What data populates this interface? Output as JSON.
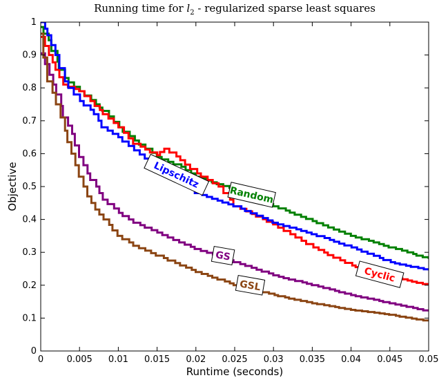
{
  "chart_data": {
    "type": "line",
    "title_prefix": "Running time for ",
    "title_var": "l",
    "title_sub": "2",
    "title_suffix": " - regularized sparse least squares",
    "xlabel": "Runtime (seconds)",
    "ylabel": "Objective",
    "xlim": [
      0,
      0.05
    ],
    "ylim": [
      0,
      1
    ],
    "xticks": [
      0,
      0.005,
      0.01,
      0.015,
      0.02,
      0.025,
      0.03,
      0.035,
      0.04,
      0.045,
      0.05
    ],
    "xtick_labels": [
      "0",
      "0.005",
      "0.01",
      "0.015",
      "0.02",
      "0.025",
      "0.03",
      "0.035",
      "0.04",
      "0.045",
      "0.05"
    ],
    "yticks": [
      0,
      0.1,
      0.2,
      0.3,
      0.4,
      0.5,
      0.6,
      0.7,
      0.8,
      0.9,
      1
    ],
    "ytick_labels": [
      "0",
      "0.1",
      "0.2",
      "0.3",
      "0.4",
      "0.5",
      "0.6",
      "0.7",
      "0.8",
      "0.9",
      "1"
    ],
    "grid": false,
    "series": [
      {
        "name": "Random",
        "color": "#008000",
        "x": [
          0,
          0.001,
          0.002,
          0.003,
          0.005,
          0.007,
          0.008,
          0.01,
          0.012,
          0.015,
          0.018,
          0.02,
          0.025,
          0.03,
          0.035,
          0.04,
          0.045,
          0.05
        ],
        "y": [
          0.985,
          0.945,
          0.88,
          0.83,
          0.79,
          0.75,
          0.73,
          0.68,
          0.64,
          0.59,
          0.56,
          0.53,
          0.49,
          0.44,
          0.395,
          0.35,
          0.315,
          0.28
        ]
      },
      {
        "name": "Cyclic",
        "color": "#ff0000",
        "x": [
          0,
          0.001,
          0.002,
          0.003,
          0.005,
          0.007,
          0.008,
          0.01,
          0.012,
          0.015,
          0.016,
          0.018,
          0.02,
          0.023,
          0.025,
          0.03,
          0.035,
          0.04,
          0.045,
          0.05
        ],
        "y": [
          0.955,
          0.9,
          0.855,
          0.81,
          0.79,
          0.745,
          0.72,
          0.68,
          0.63,
          0.595,
          0.615,
          0.58,
          0.54,
          0.5,
          0.44,
          0.385,
          0.315,
          0.26,
          0.225,
          0.2
        ]
      },
      {
        "name": "Lipschitz",
        "color": "#0000ff",
        "x": [
          0,
          0.001,
          0.002,
          0.003,
          0.005,
          0.007,
          0.008,
          0.01,
          0.012,
          0.015,
          0.018,
          0.02,
          0.025,
          0.03,
          0.035,
          0.04,
          0.045,
          0.05
        ],
        "y": [
          1,
          0.96,
          0.9,
          0.82,
          0.76,
          0.72,
          0.68,
          0.65,
          0.61,
          0.56,
          0.53,
          0.48,
          0.44,
          0.39,
          0.355,
          0.315,
          0.27,
          0.245
        ]
      },
      {
        "name": "GS",
        "color": "#800080",
        "x": [
          0,
          0.001,
          0.002,
          0.003,
          0.004,
          0.005,
          0.006,
          0.007,
          0.008,
          0.01,
          0.012,
          0.015,
          0.018,
          0.02,
          0.025,
          0.03,
          0.035,
          0.04,
          0.045,
          0.05
        ],
        "y": [
          0.905,
          0.84,
          0.78,
          0.71,
          0.66,
          0.59,
          0.54,
          0.5,
          0.46,
          0.42,
          0.39,
          0.36,
          0.33,
          0.31,
          0.27,
          0.23,
          0.2,
          0.17,
          0.145,
          0.12
        ]
      },
      {
        "name": "GSL",
        "color": "#8B4513",
        "x": [
          0,
          0.001,
          0.002,
          0.003,
          0.004,
          0.005,
          0.006,
          0.007,
          0.008,
          0.01,
          0.012,
          0.015,
          0.018,
          0.02,
          0.025,
          0.03,
          0.035,
          0.04,
          0.045,
          0.05
        ],
        "y": [
          0.965,
          0.82,
          0.75,
          0.67,
          0.6,
          0.53,
          0.47,
          0.43,
          0.4,
          0.35,
          0.32,
          0.29,
          0.26,
          0.24,
          0.2,
          0.17,
          0.145,
          0.125,
          0.11,
          0.09
        ]
      }
    ],
    "annotations": [
      {
        "text": "Random",
        "series": "Random",
        "x": 0.0272,
        "y": 0.475,
        "angle": 13
      },
      {
        "text": "Cyclic",
        "series": "Cyclic",
        "x": 0.0437,
        "y": 0.233,
        "angle": 15
      },
      {
        "text": "Lipschitz",
        "series": "Lipschitz",
        "x": 0.0175,
        "y": 0.536,
        "angle": 25
      },
      {
        "text": "GS",
        "series": "GS",
        "x": 0.0235,
        "y": 0.29,
        "angle": 10
      },
      {
        "text": "GSL",
        "series": "GSL",
        "x": 0.027,
        "y": 0.2,
        "angle": 10
      }
    ]
  }
}
